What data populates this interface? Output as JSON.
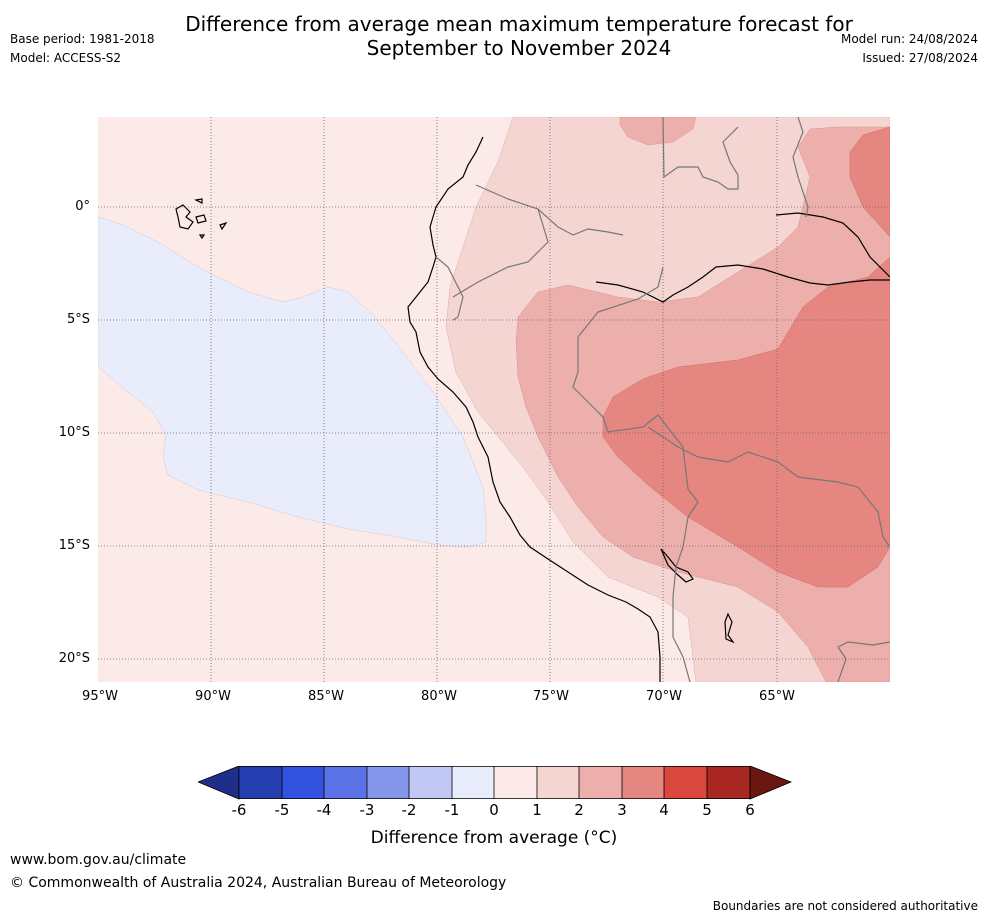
{
  "header": {
    "title_line1": "Difference from average mean maximum temperature forecast for",
    "title_line2": "September to November 2024",
    "base_period": "Base period: 1981-2018",
    "model": "Model: ACCESS-S2",
    "model_run": "Model run: 24/08/2024",
    "issued": "Issued: 27/08/2024"
  },
  "map": {
    "lat_labels": [
      "0°",
      "5°S",
      "10°S",
      "15°S",
      "20°S"
    ],
    "lon_labels": [
      "95°W",
      "90°W",
      "85°W",
      "80°W",
      "75°W",
      "70°W",
      "65°W"
    ],
    "colors": {
      "neg1_0": "#e8ecfb",
      "0_1": "#fbeae8",
      "1_2": "#f5d5d2",
      "2_3": "#edafab",
      "3_4": "#e58680"
    }
  },
  "colorbar": {
    "labels": [
      "-6",
      "-5",
      "-4",
      "-3",
      "-2",
      "-1",
      "0",
      "1",
      "2",
      "3",
      "4",
      "5",
      "6"
    ],
    "colors": [
      "#1f2e88",
      "#263fb0",
      "#3352e0",
      "#5a72e6",
      "#8597ec",
      "#c2c8f4",
      "#e8ecfb",
      "#fbeae8",
      "#f5d5d2",
      "#edafab",
      "#e58680",
      "#d9473d",
      "#a82722",
      "#6b1711"
    ],
    "title": "Difference from average (°C)"
  },
  "footer": {
    "url": "www.bom.gov.au/climate",
    "copyright": "© Commonwealth of Australia 2024, Australian Bureau of Meteorology",
    "disclaimer": "Boundaries are not considered authoritative"
  }
}
